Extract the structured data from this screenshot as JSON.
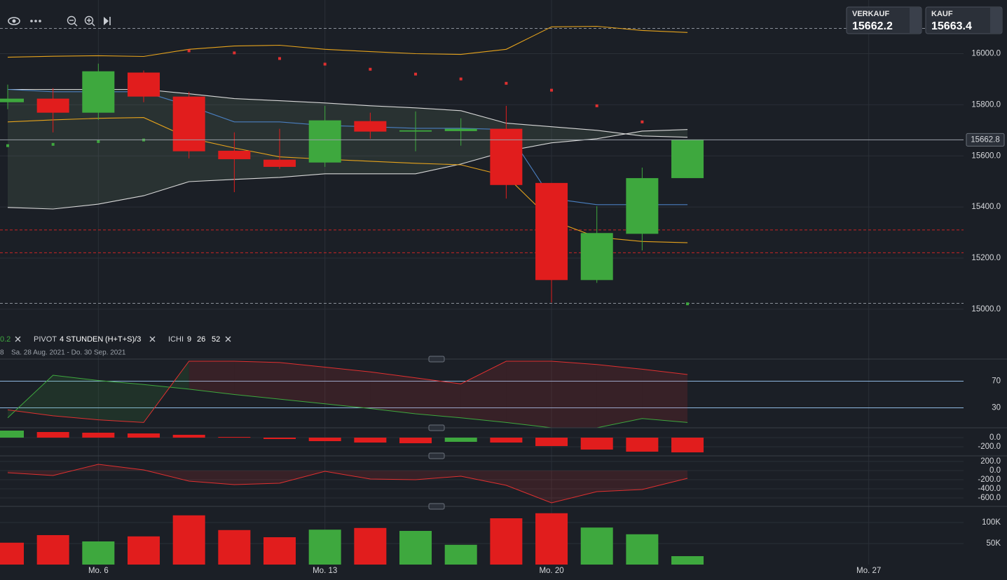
{
  "quotes": [
    {
      "label": "VERKAUF",
      "price": "15662.2"
    },
    {
      "label": "KAUF",
      "price": "15663.4"
    }
  ],
  "legend": {
    "sar_param": "0.2",
    "indicators": [
      {
        "name": "PIVOT",
        "params": [
          "4 STUNDEN",
          "(H+T+S)/3"
        ]
      },
      {
        "name": "ICHI",
        "params": [
          "9",
          "26",
          "52"
        ]
      }
    ],
    "prefix": "8",
    "date_range": "Sa. 28 Aug. 2021 - Do. 30 Sep. 2021"
  },
  "chart_data": [
    {
      "type": "candlestick",
      "categories": [
        null,
        null,
        "Mo. 6",
        null,
        null,
        null,
        null,
        "Mo. 13",
        null,
        null,
        null,
        null,
        "Mo. 20",
        null,
        null,
        null,
        null,
        null,
        null,
        "Mo. 27"
      ],
      "open": [
        15810,
        15824,
        15769,
        15926,
        15832,
        15620,
        15585,
        15574,
        15736,
        15695,
        15697,
        15706,
        15494,
        15114,
        15295,
        15513,
        null,
        null,
        null,
        null
      ],
      "high": [
        15879,
        15865,
        15961,
        15934,
        15851,
        15692,
        15706,
        15796,
        15769,
        15774,
        15747,
        15796,
        15494,
        15403,
        15554,
        15664,
        null,
        null,
        null,
        null
      ],
      "low": [
        15783,
        15692,
        15741,
        15810,
        15590,
        15458,
        15549,
        15557,
        15667,
        15618,
        15640,
        15433,
        15026,
        15103,
        15230,
        15513,
        null,
        null,
        null,
        null
      ],
      "close": [
        15824,
        15769,
        15931,
        15832,
        15618,
        15587,
        15557,
        15739,
        15695,
        15700,
        15706,
        15486,
        15114,
        15298,
        15513,
        15664,
        null,
        null,
        null,
        null
      ],
      "up_color": "#3ea83e",
      "down_color": "#e11d1d",
      "overlays": [
        {
          "color": "#e6a31c",
          "values": [
            15986,
            15990,
            15992,
            15989,
            16017,
            16030,
            16033,
            16017,
            16008,
            16000,
            15997,
            16017,
            16105,
            16107,
            16091,
            16083,
            null,
            null,
            null,
            null
          ]
        },
        {
          "color": "#d8d8d8",
          "values": [
            15860,
            15860,
            15860,
            15860,
            15843,
            15824,
            15816,
            15807,
            15796,
            15788,
            15777,
            15728,
            15714,
            15700,
            15678,
            15673,
            null,
            null,
            null,
            null
          ]
        },
        {
          "color": "#d8d8d8",
          "values": [
            15398,
            15392,
            15411,
            15444,
            15499,
            15508,
            15516,
            15530,
            15530,
            15530,
            15568,
            15618,
            15651,
            15667,
            15697,
            15703,
            null,
            null,
            null,
            null
          ]
        },
        {
          "color": "#4a7fc0",
          "values": [
            15860,
            15851,
            15851,
            15851,
            15796,
            15733,
            15733,
            15719,
            15714,
            15708,
            15708,
            15703,
            15433,
            15409,
            15409,
            15409,
            null,
            null,
            null,
            null
          ]
        },
        {
          "color": "#e6a31c",
          "values": [
            15733,
            15741,
            15747,
            15750,
            15670,
            15631,
            15596,
            15587,
            15579,
            15571,
            15565,
            15521,
            15348,
            15282,
            15265,
            15260,
            null,
            null,
            null,
            null
          ]
        }
      ],
      "sar": [
        {
          "color": "#e03030",
          "values": [
            null,
            null,
            null,
            null,
            16011,
            16003,
            15981,
            15959,
            15939,
            15920,
            15901,
            15884,
            15857,
            15796,
            15733,
            null,
            null,
            null,
            null,
            null
          ]
        },
        {
          "color": "#3ea83e",
          "values": [
            15640,
            15645,
            15656,
            15662,
            null,
            null,
            null,
            null,
            null,
            null,
            null,
            null,
            null,
            null,
            null,
            15021,
            null,
            null,
            null,
            null
          ]
        }
      ],
      "hlines": [
        {
          "value": 16099,
          "color": "#8a9099"
        },
        {
          "value": 15023,
          "color": "#8a9099"
        },
        {
          "value": 15310,
          "color": "#c92424"
        },
        {
          "value": 15221,
          "color": "#c92424"
        }
      ],
      "last_price": 15662.8,
      "ylim": [
        14920,
        16210
      ],
      "yticks": [
        {
          "value": 15000,
          "label": "15000.0"
        },
        {
          "value": 15200,
          "label": "15200.0"
        },
        {
          "value": 15400,
          "label": "15400.0"
        },
        {
          "value": 15600,
          "label": "15600.0"
        },
        {
          "value": 15800,
          "label": "15800.0"
        },
        {
          "value": 16000,
          "label": "16000.0"
        }
      ],
      "grid": true
    },
    {
      "type": "line",
      "series": [
        {
          "color": "#3ea83e",
          "values": [
            15,
            79,
            71,
            65,
            58,
            50,
            43,
            36,
            29,
            21,
            15,
            8,
            0,
            0,
            14,
            8
          ]
        },
        {
          "color": "#e03030",
          "values": [
            27,
            18,
            12,
            8,
            100,
            100,
            98,
            91,
            84,
            75,
            66,
            100,
            100,
            95,
            88,
            80
          ]
        }
      ],
      "ylim": [
        0,
        100
      ],
      "yticks": [
        30,
        70
      ],
      "tick_color": "#8fb8e0"
    },
    {
      "type": "bar",
      "values": [
        154,
        123,
        108,
        92,
        62,
        15,
        -31,
        -77,
        -108,
        -123,
        -92,
        -108,
        -185,
        -262,
        -308,
        -323
      ],
      "colors": [
        "#3ea83e",
        "#e11d1d",
        "#e11d1d",
        "#e11d1d",
        "#e11d1d",
        "#e11d1d",
        "#e11d1d",
        "#e11d1d",
        "#e11d1d",
        "#e11d1d",
        "#3ea83e",
        "#e11d1d",
        "#e11d1d",
        "#e11d1d",
        "#e11d1d",
        "#e11d1d"
      ],
      "ylim": [
        -369,
        169
      ],
      "yticks": [
        {
          "value": 0,
          "label": "0.0"
        },
        {
          "value": -200,
          "label": "-200.0"
        }
      ]
    },
    {
      "type": "area",
      "values": [
        -46,
        -108,
        138,
        15,
        -231,
        -308,
        -277,
        -15,
        -185,
        -200,
        -123,
        -323,
        -708,
        -462,
        -415,
        -169
      ],
      "color": "#e03030",
      "ylim": [
        -754,
        292
      ],
      "yticks": [
        {
          "value": 200,
          "label": "200.0"
        },
        {
          "value": 0,
          "label": "0.0"
        },
        {
          "value": -200,
          "label": "-200.0"
        },
        {
          "value": -400,
          "label": "-400.0"
        },
        {
          "value": -600,
          "label": "-600.0"
        }
      ]
    },
    {
      "type": "bar",
      "values": [
        52000,
        70000,
        55000,
        67000,
        117000,
        82000,
        65000,
        83000,
        87000,
        80000,
        47000,
        110000,
        122000,
        88000,
        72000,
        20000
      ],
      "colors": [
        "#e11d1d",
        "#e11d1d",
        "#3ea83e",
        "#e11d1d",
        "#e11d1d",
        "#e11d1d",
        "#e11d1d",
        "#3ea83e",
        "#e11d1d",
        "#3ea83e",
        "#3ea83e",
        "#e11d1d",
        "#e11d1d",
        "#3ea83e",
        "#3ea83e",
        "#3ea83e"
      ],
      "ylim": [
        0,
        130000
      ],
      "yticks": [
        {
          "value": 50000,
          "label": "50K"
        },
        {
          "value": 100000,
          "label": "100K"
        }
      ]
    }
  ]
}
